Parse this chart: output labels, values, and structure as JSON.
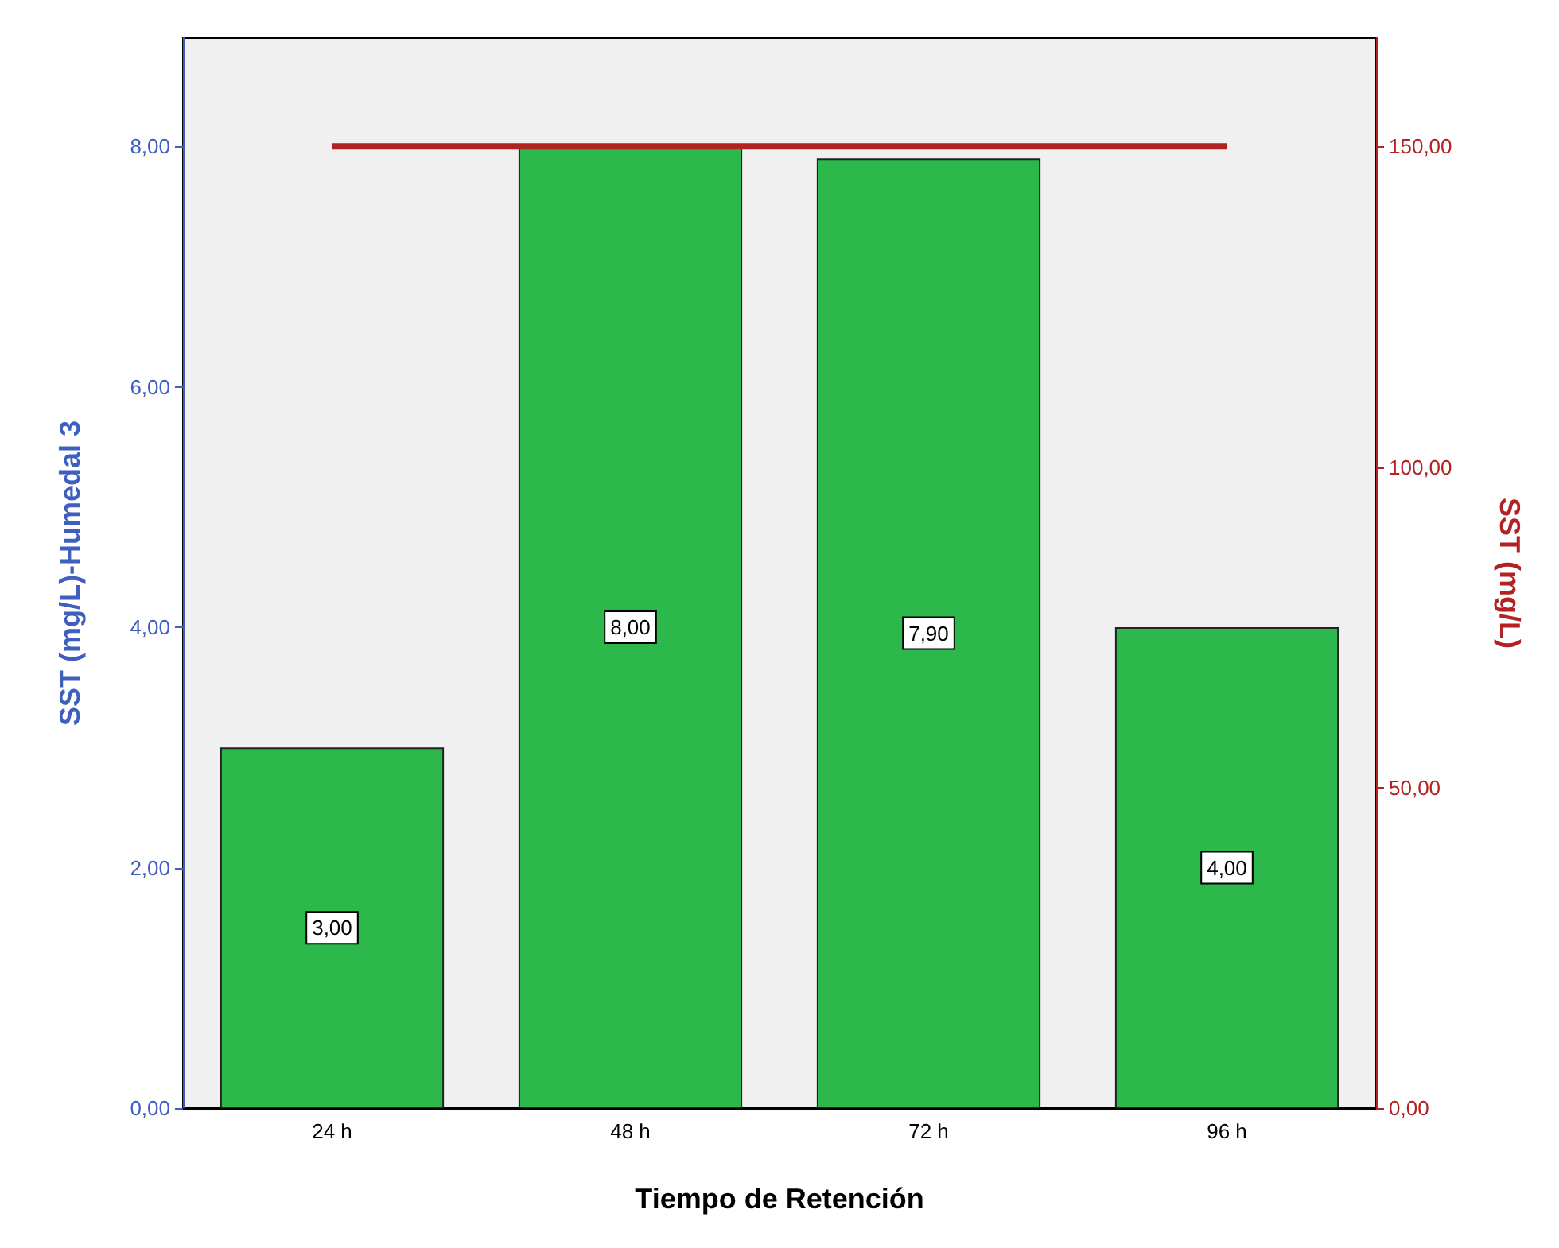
{
  "chart_data": {
    "type": "bar",
    "xlabel": "Tiempo de Retención",
    "ylabel": "SST (mg/L)-Humedal 3",
    "y2label": "SST (mg/L)",
    "categories": [
      "24 h",
      "48 h",
      "72 h",
      "96 h"
    ],
    "series": [
      {
        "color": "#2db84b",
        "values": [
          3,
          8,
          7.9,
          4
        ],
        "value_labels": [
          "3,00",
          "8,00",
          "7,90",
          "4,00"
        ]
      },
      {
        "type": "line",
        "axis": "y2",
        "color": "#b22222",
        "values": [
          150,
          150,
          150,
          150
        ]
      }
    ],
    "ylim": [
      0,
      8.9
    ],
    "yticks": [
      {
        "value": 0,
        "label": "0,00"
      },
      {
        "value": 2,
        "label": "2,00"
      },
      {
        "value": 4,
        "label": "4,00"
      },
      {
        "value": 6,
        "label": "6,00"
      },
      {
        "value": 8,
        "label": "8,00"
      }
    ],
    "y2lim": [
      0,
      166.9
    ],
    "y2ticks": [
      {
        "value": 0,
        "label": "0,00"
      },
      {
        "value": 50,
        "label": "50,00"
      },
      {
        "value": 100,
        "label": "100,00"
      },
      {
        "value": 150,
        "label": "150,00"
      }
    ],
    "grid": false,
    "marker": "none",
    "line_style": "solid"
  }
}
